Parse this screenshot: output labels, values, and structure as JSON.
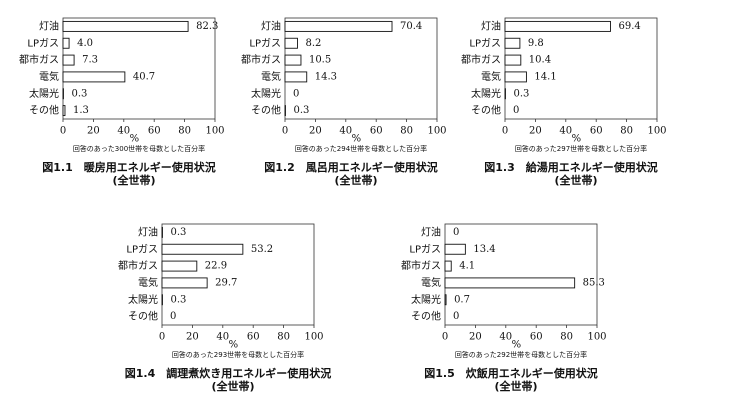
{
  "chart_data": [
    {
      "type": "bar",
      "orientation": "horizontal",
      "title": "図1.1　暖房用エネルギー使用状況",
      "subtitle": "(全世帯)",
      "categories": [
        "灯油",
        "LPガス",
        "都市ガス",
        "電気",
        "太陽光",
        "その他"
      ],
      "values": [
        82.3,
        4.0,
        7.3,
        40.7,
        0.3,
        1.3
      ],
      "value_labels": [
        "82.3",
        "4.0",
        "7.3",
        "40.7",
        "0.3",
        "1.3"
      ],
      "color": "#ffffff",
      "xlim": [
        0,
        100
      ],
      "xticks": [
        0,
        20,
        40,
        60,
        80,
        100
      ],
      "xlabel": "%",
      "note": "回答のあった300世帯を母数とした百分率"
    },
    {
      "type": "bar",
      "orientation": "horizontal",
      "title": "図1.2　風呂用エネルギー使用状況",
      "subtitle": "(全世帯)",
      "categories": [
        "灯油",
        "LPガス",
        "都市ガス",
        "電気",
        "太陽光",
        "その他"
      ],
      "values": [
        70.4,
        8.2,
        10.5,
        14.3,
        0,
        0.3
      ],
      "value_labels": [
        "70.4",
        "8.2",
        "10.5",
        "14.3",
        "0",
        "0.3"
      ],
      "color": "#ffffff",
      "xlim": [
        0,
        100
      ],
      "xticks": [
        0,
        20,
        40,
        60,
        80,
        100
      ],
      "xlabel": "%",
      "note": "回答のあった294世帯を母数とした百分率"
    },
    {
      "type": "bar",
      "orientation": "horizontal",
      "title": "図1.3　給湯用エネルギー使用状況",
      "subtitle": "(全世帯)",
      "categories": [
        "灯油",
        "LPガス",
        "都市ガス",
        "電気",
        "太陽光",
        "その他"
      ],
      "values": [
        69.4,
        9.8,
        10.4,
        14.1,
        0.3,
        0
      ],
      "value_labels": [
        "69.4",
        "9.8",
        "10.4",
        "14.1",
        "0.3",
        "0"
      ],
      "color": "#ffffff",
      "xlim": [
        0,
        100
      ],
      "xticks": [
        0,
        20,
        40,
        60,
        80,
        100
      ],
      "xlabel": "%",
      "note": "回答のあった297世帯を母数とした百分率"
    },
    {
      "type": "bar",
      "orientation": "horizontal",
      "title": "図1.4　調理煮炊き用エネルギー使用状況",
      "subtitle": "(全世帯)",
      "categories": [
        "灯油",
        "LPガス",
        "都市ガス",
        "電気",
        "太陽光",
        "その他"
      ],
      "values": [
        0.3,
        53.2,
        22.9,
        29.7,
        0.3,
        0
      ],
      "value_labels": [
        "0.3",
        "53.2",
        "22.9",
        "29.7",
        "0.3",
        "0"
      ],
      "color": "#ffffff",
      "xlim": [
        0,
        100
      ],
      "xticks": [
        0,
        20,
        40,
        60,
        80,
        100
      ],
      "xlabel": "%",
      "note": "回答のあった293世帯を母数とした百分率"
    },
    {
      "type": "bar",
      "orientation": "horizontal",
      "title": "図1.5　炊飯用エネルギー使用状況",
      "subtitle": "(全世帯)",
      "categories": [
        "灯油",
        "LPガス",
        "都市ガス",
        "電気",
        "太陽光",
        "その他"
      ],
      "values": [
        0,
        13.4,
        4.1,
        85.3,
        0.7,
        0
      ],
      "value_labels": [
        "0",
        "13.4",
        "4.1",
        "85.3",
        "0.7",
        "0"
      ],
      "color": "#ffffff",
      "xlim": [
        0,
        100
      ],
      "xticks": [
        0,
        20,
        40,
        60,
        80,
        100
      ],
      "xlabel": "%",
      "note": "回答のあった292世帯を母数とした百分率"
    }
  ]
}
